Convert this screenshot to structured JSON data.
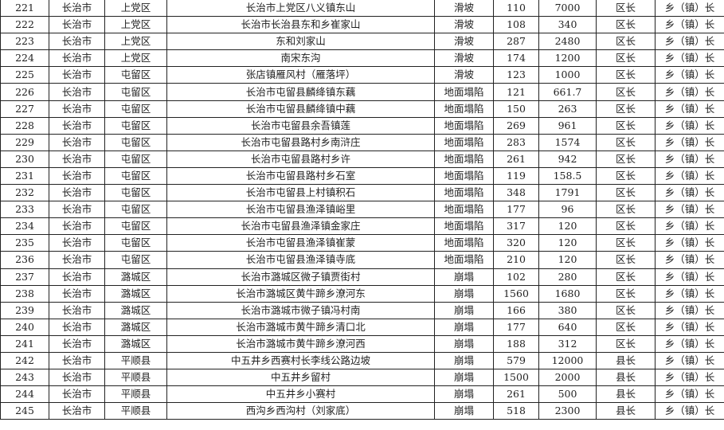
{
  "rows": [
    [
      "221",
      "长治市",
      "上党区",
      "长治市上党区八义镇东山",
      "滑坡",
      "110",
      "7000",
      "区长",
      "乡（镇）长"
    ],
    [
      "222",
      "长治市",
      "上党区",
      "长治市长治县东和乡崔家山",
      "滑坡",
      "108",
      "340",
      "区长",
      "乡（镇）长"
    ],
    [
      "223",
      "长治市",
      "上党区",
      "东和刘家山",
      "滑坡",
      "287",
      "2480",
      "区长",
      "乡（镇）长"
    ],
    [
      "224",
      "长治市",
      "上党区",
      "南宋东沟",
      "滑坡",
      "174",
      "1200",
      "区长",
      "乡（镇）长"
    ],
    [
      "225",
      "长治市",
      "屯留区",
      "张店镇雁风村（雁落坪）",
      "滑坡",
      "123",
      "1000",
      "区长",
      "乡（镇）长"
    ],
    [
      "226",
      "长治市",
      "屯留区",
      "长治市屯留县麟绛镇东藕",
      "地面塌陷",
      "121",
      "661.7",
      "区长",
      "乡（镇）长"
    ],
    [
      "227",
      "长治市",
      "屯留区",
      "长治市屯留县麟绛镇中藕",
      "地面塌陷",
      "150",
      "263",
      "区长",
      "乡（镇）长"
    ],
    [
      "228",
      "长治市",
      "屯留区",
      "长治市屯留县余吾镇莲",
      "地面塌陷",
      "269",
      "961",
      "区长",
      "乡（镇）长"
    ],
    [
      "229",
      "长治市",
      "屯留区",
      "长治市屯留县路村乡南浒庄",
      "地面塌陷",
      "283",
      "1574",
      "区长",
      "乡（镇）长"
    ],
    [
      "230",
      "长治市",
      "屯留区",
      "长治市屯留县路村乡许",
      "地面塌陷",
      "261",
      "942",
      "区长",
      "乡（镇）长"
    ],
    [
      "231",
      "长治市",
      "屯留区",
      "长治市屯留县路村乡石室",
      "地面塌陷",
      "119",
      "158.5",
      "区长",
      "乡（镇）长"
    ],
    [
      "232",
      "长治市",
      "屯留区",
      "长治市屯留县上村镇积石",
      "地面塌陷",
      "348",
      "1791",
      "区长",
      "乡（镇）长"
    ],
    [
      "233",
      "长治市",
      "屯留区",
      "长治市屯留县渔泽镇峪里",
      "地面塌陷",
      "177",
      "96",
      "区长",
      "乡（镇）长"
    ],
    [
      "234",
      "长治市",
      "屯留区",
      "长治市屯留县渔泽镇金家庄",
      "地面塌陷",
      "317",
      "120",
      "区长",
      "乡（镇）长"
    ],
    [
      "235",
      "长治市",
      "屯留区",
      "长治市屯留县渔泽镇崔蒙",
      "地面塌陷",
      "320",
      "120",
      "区长",
      "乡（镇）长"
    ],
    [
      "236",
      "长治市",
      "屯留区",
      "长治市屯留县渔泽镇寺底",
      "地面塌陷",
      "210",
      "120",
      "区长",
      "乡（镇）长"
    ],
    [
      "237",
      "长治市",
      "潞城区",
      "长治市潞城区微子镇贾街村",
      "崩塌",
      "102",
      "280",
      "区长",
      "乡（镇）长"
    ],
    [
      "238",
      "长治市",
      "潞城区",
      "长治市潞城区黄牛蹄乡潦河东",
      "崩塌",
      "1560",
      "1680",
      "区长",
      "乡（镇）长"
    ],
    [
      "239",
      "长治市",
      "潞城区",
      "长治市潞城市微子镇冯村南",
      "崩塌",
      "166",
      "380",
      "区长",
      "乡（镇）长"
    ],
    [
      "240",
      "长治市",
      "潞城区",
      "长治市潞城市黄牛蹄乡清口北",
      "崩塌",
      "177",
      "640",
      "区长",
      "乡（镇）长"
    ],
    [
      "241",
      "长治市",
      "潞城区",
      "长治市潞城市黄牛蹄乡潦河西",
      "崩塌",
      "188",
      "312",
      "区长",
      "乡（镇）长"
    ],
    [
      "242",
      "长治市",
      "平顺县",
      "中五井乡西赛村长李线公路边坡",
      "崩塌",
      "579",
      "12000",
      "县长",
      "乡（镇）长"
    ],
    [
      "243",
      "长治市",
      "平顺县",
      "中五井乡留村",
      "崩塌",
      "1500",
      "2000",
      "县长",
      "乡（镇）长"
    ],
    [
      "244",
      "长治市",
      "平顺县",
      "中五井乡小赛村",
      "崩塌",
      "261",
      "500",
      "县长",
      "乡（镇）长"
    ],
    [
      "245",
      "长治市",
      "平顺县",
      "西沟乡西沟村（刘家底）",
      "崩塌",
      "518",
      "2300",
      "县长",
      "乡（镇）长"
    ]
  ]
}
